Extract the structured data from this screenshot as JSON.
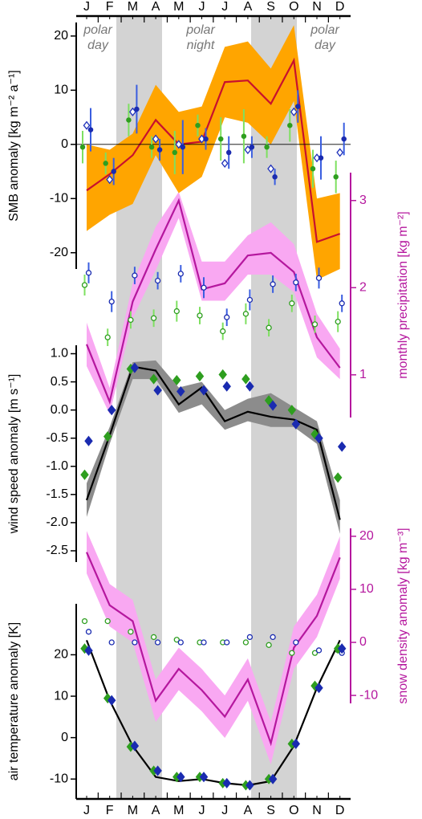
{
  "chart_data": [
    {
      "type": "line",
      "categories": [
        "J",
        "F",
        "M",
        "A",
        "M",
        "J",
        "J",
        "A",
        "S",
        "O",
        "N",
        "D"
      ],
      "annotations": [
        "polar day",
        "polar night",
        "polar day"
      ],
      "ylabel": "SMB anomaly [kg m⁻² a⁻¹]",
      "ylim": [
        -23,
        22.5
      ],
      "yticks": [
        -20,
        -10,
        0,
        10,
        20
      ],
      "hline": 0,
      "series": [
        {
          "kind": "band",
          "color": "#ffa500",
          "lower": [
            -16,
            -13,
            -11,
            -2,
            -9,
            -6,
            5,
            4,
            0,
            8,
            -25,
            -23
          ],
          "upper": [
            0,
            -1,
            2,
            11,
            6,
            7,
            18,
            19,
            14,
            22,
            -10,
            -9
          ]
        },
        {
          "kind": "line",
          "color": "#c8102e",
          "values": [
            -8.5,
            -5.5,
            -2,
            4.5,
            0,
            0.5,
            11.5,
            11.8,
            7.5,
            15.5,
            -18,
            -16.5
          ]
        },
        {
          "kind": "points",
          "marker": "circle-filled",
          "color": "#2e9e1f",
          "error_color": "#7ee060",
          "values": [
            -0.5,
            -3.5,
            4.5,
            -0.5,
            -1.5,
            3.5,
            1,
            1.5,
            -0.5,
            3.5,
            -4.5,
            -6
          ],
          "errors": [
            3,
            2,
            3,
            2,
            4,
            2,
            4,
            5,
            2,
            3,
            3.5,
            3
          ]
        },
        {
          "kind": "points",
          "marker": "diamond-open",
          "color": "#2233bb",
          "values": [
            3.5,
            -6.5,
            6,
            1,
            0,
            1,
            -3.5,
            -1,
            -4.5,
            6,
            -2.5,
            -1.5
          ]
        },
        {
          "kind": "points",
          "marker": "circle-filled",
          "color": "#1a2bb0",
          "error_color": "#3a5ee0",
          "values": [
            2.7,
            -5,
            6.5,
            -1,
            -0.5,
            1,
            -1.5,
            -0.5,
            -6,
            7,
            -2.5,
            1
          ],
          "errors": [
            4,
            2.5,
            4.5,
            2,
            5,
            2,
            3,
            2,
            1.5,
            3,
            4,
            3
          ]
        }
      ]
    },
    {
      "type": "line",
      "y2label": "monthly precipitation [kg m⁻²]",
      "axis_color": "#b5179e",
      "y2lim": [
        0.51,
        3.32
      ],
      "y2ticks": [
        1,
        2,
        3
      ],
      "series": [
        {
          "kind": "band",
          "axis": "y2",
          "color": "#f9a8f2",
          "lower": [
            1.1,
            0.55,
            1.65,
            2.2,
            2.8,
            1.85,
            1.85,
            2.15,
            2.15,
            1.95,
            1.2,
            0.95
          ],
          "upper": [
            1.6,
            0.85,
            2.05,
            2.7,
            3.1,
            2.3,
            2.3,
            2.6,
            2.75,
            2.5,
            1.7,
            1.3
          ]
        },
        {
          "kind": "line",
          "axis": "y2",
          "color": "#b5179e",
          "values": [
            1.35,
            0.69,
            1.84,
            2.44,
            3.0,
            1.98,
            2.05,
            2.37,
            2.4,
            2.18,
            1.43,
            1.08
          ]
        },
        {
          "kind": "points",
          "axis": "y2",
          "marker": "circle-open",
          "color": "#2e9e1f",
          "error_color": "#7ee060",
          "values": [
            2.03,
            1.43,
            1.63,
            1.65,
            1.73,
            1.68,
            1.5,
            1.7,
            1.54,
            1.82,
            1.58,
            1.61
          ],
          "errors": [
            0.12,
            0.1,
            0.1,
            0.1,
            0.12,
            0.1,
            0.1,
            0.12,
            0.1,
            0.1,
            0.1,
            0.12
          ]
        },
        {
          "kind": "points",
          "axis": "y2",
          "marker": "circle-open",
          "color": "#1a2bb0",
          "error_color": "#3a5ee0",
          "values": [
            2.17,
            1.84,
            2.14,
            2.08,
            2.16,
            2.0,
            1.66,
            1.86,
            2.04,
            2.06,
            2.11,
            1.82
          ],
          "errors": [
            0.12,
            0.12,
            0.1,
            0.1,
            0.1,
            0.12,
            0.1,
            0.12,
            0.1,
            0.1,
            0.12,
            0.1
          ]
        }
      ]
    },
    {
      "type": "line",
      "ylabel": "wind speed anomaly [m s⁻¹]",
      "ylim": [
        -2.7,
        1.15
      ],
      "yticks": [
        -2.5,
        {
          "value": -2,
          "label": "-2.0"
        },
        -1.5,
        {
          "value": -1,
          "label": "-1.0"
        },
        -0.5,
        {
          "value": 0,
          "label": "0.0"
        },
        0.5,
        {
          "value": 1,
          "label": "1.0"
        }
      ],
      "series": [
        {
          "kind": "band",
          "color": "#8c8c8c",
          "lower": [
            -1.9,
            -0.6,
            0.55,
            0.55,
            -0.05,
            0.1,
            -0.35,
            -0.2,
            -0.3,
            -0.3,
            -0.6,
            -2.2
          ],
          "upper": [
            -1.3,
            -0.3,
            0.85,
            0.88,
            0.4,
            0.5,
            0,
            0.2,
            0.3,
            0.05,
            -0.2,
            -1.6
          ]
        },
        {
          "kind": "line",
          "color": "#000000",
          "values": [
            -1.6,
            -0.45,
            0.77,
            0.7,
            0.1,
            0.4,
            -0.2,
            -0.03,
            -0.12,
            -0.17,
            -0.35,
            -1.95
          ]
        },
        {
          "kind": "points",
          "marker": "diamond-filled",
          "color": "#2e9e1f",
          "values": [
            -1.15,
            -0.47,
            0.73,
            0.55,
            0.53,
            0.6,
            0.63,
            0.55,
            0.17,
            0,
            -0.43,
            -1.2
          ]
        },
        {
          "kind": "points",
          "marker": "diamond-filled",
          "color": "#1a2bb0",
          "values": [
            -0.55,
            0,
            0.75,
            0.35,
            0.33,
            0.35,
            0.42,
            0.42,
            0.08,
            -0.25,
            -0.5,
            -0.65
          ]
        }
      ]
    },
    {
      "type": "line",
      "y2label": "snow density anomaly [kg m⁻³]",
      "axis_color": "#b5179e",
      "y2lim": [
        -11.5,
        21.5
      ],
      "y2ticks": [
        -10,
        0,
        10,
        20
      ],
      "series": [
        {
          "kind": "band",
          "axis": "y2",
          "color": "#f9a8f2",
          "lower": [
            13,
            3,
            0,
            -15,
            -9,
            -13,
            -18,
            -11,
            -23,
            -5,
            1,
            12
          ],
          "upper": [
            21,
            11,
            8,
            -7,
            -1,
            -5,
            -10,
            -3,
            -15,
            3,
            9,
            20
          ]
        },
        {
          "kind": "line",
          "axis": "y2",
          "color": "#b5179e",
          "values": [
            17,
            7,
            4,
            -11,
            -5,
            -9,
            -14,
            -7,
            -19,
            -1,
            5,
            16
          ]
        },
        {
          "kind": "points",
          "axis": "y2",
          "marker": "circle-open",
          "color": "#2e9e1f",
          "values": [
            4,
            4,
            2,
            1,
            0.5,
            0,
            0,
            0,
            -0.5,
            -2,
            -2,
            -1.5
          ]
        },
        {
          "kind": "points",
          "axis": "y2",
          "marker": "circle-open",
          "color": "#1a2bb0",
          "values": [
            2,
            0,
            0,
            0,
            0,
            0,
            0,
            1,
            1,
            0,
            -1.5,
            -2
          ]
        }
      ]
    },
    {
      "type": "line",
      "ylabel": "air temperature anomaly [K]",
      "ylim": [
        -14.8,
        32.3
      ],
      "yticks": [
        -10,
        0,
        10,
        20
      ],
      "series": [
        {
          "kind": "line",
          "color": "#000000",
          "values": [
            23.5,
            9,
            -2,
            -9.5,
            -10.5,
            -10,
            -11,
            -11.5,
            -10.5,
            -2,
            12,
            23.5
          ]
        },
        {
          "kind": "points",
          "marker": "diamond-filled",
          "color": "#2e9e1f",
          "values": [
            21.5,
            9.5,
            -2.2,
            -8,
            -9.5,
            -9.5,
            -11,
            -11.5,
            -10,
            -1.5,
            12.5,
            21.5
          ]
        },
        {
          "kind": "points",
          "marker": "diamond-filled",
          "color": "#1a2bb0",
          "values": [
            21,
            9,
            -2,
            -8,
            -9.5,
            -9.5,
            -11,
            -11.5,
            -10,
            -1.5,
            12,
            21.5
          ]
        }
      ]
    }
  ]
}
